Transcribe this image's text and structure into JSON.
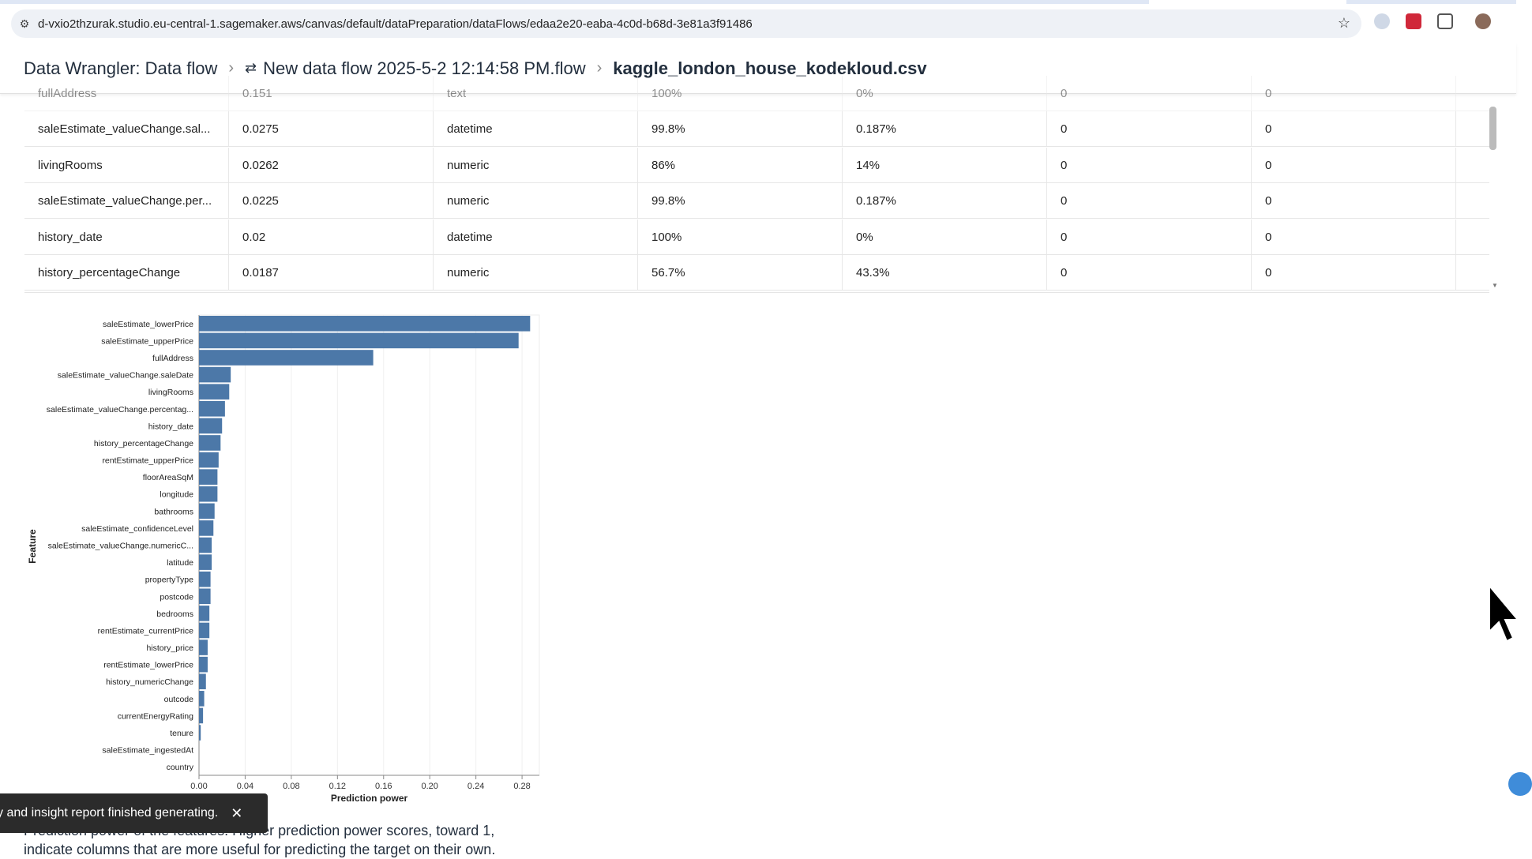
{
  "browser": {
    "url": "d-vxio2thzurak.studio.eu-central-1.sagemaker.aws/canvas/default/dataPreparation/dataFlows/edaa2e20-eaba-4c0d-b68d-3e81a3f91486"
  },
  "breadcrumb": [
    "Data Wrangler: Data flow",
    "New data flow 2025-5-2 12:14:58 PM.flow",
    "kaggle_london_house_kodekloud.csv"
  ],
  "table": {
    "partial_row": [
      "fullAddress",
      "0.151",
      "text",
      "100%",
      "0%",
      "0",
      "0"
    ],
    "rows": [
      [
        "saleEstimate_valueChange.sal...",
        "0.0275",
        "datetime",
        "99.8%",
        "0.187%",
        "0",
        "0"
      ],
      [
        "livingRooms",
        "0.0262",
        "numeric",
        "86%",
        "14%",
        "0",
        "0"
      ],
      [
        "saleEstimate_valueChange.per...",
        "0.0225",
        "numeric",
        "99.8%",
        "0.187%",
        "0",
        "0"
      ],
      [
        "history_date",
        "0.02",
        "datetime",
        "100%",
        "0%",
        "0",
        "0"
      ],
      [
        "history_percentageChange",
        "0.0187",
        "numeric",
        "56.7%",
        "43.3%",
        "0",
        "0"
      ]
    ]
  },
  "chart_data": {
    "type": "bar",
    "orientation": "horizontal",
    "xlabel": "Prediction power",
    "ylabel": "Feature",
    "xlim": [
      0,
      0.295
    ],
    "xticks": [
      "0.00",
      "0.04",
      "0.08",
      "0.12",
      "0.16",
      "0.20",
      "0.24",
      "0.28"
    ],
    "grid": true,
    "bar_color": "#4c78a8",
    "categories": [
      "saleEstimate_lowerPrice",
      "saleEstimate_upperPrice",
      "fullAddress",
      "saleEstimate_valueChange.saleDate",
      "livingRooms",
      "saleEstimate_valueChange.percentag...",
      "history_date",
      "history_percentageChange",
      "rentEstimate_upperPrice",
      "floorAreaSqM",
      "longitude",
      "bathrooms",
      "saleEstimate_confidenceLevel",
      "saleEstimate_valueChange.numericC...",
      "latitude",
      "propertyType",
      "postcode",
      "bedrooms",
      "rentEstimate_currentPrice",
      "history_price",
      "rentEstimate_lowerPrice",
      "history_numericChange",
      "outcode",
      "currentEnergyRating",
      "tenure",
      "saleEstimate_ingestedAt",
      "country"
    ],
    "values": [
      0.287,
      0.277,
      0.151,
      0.0275,
      0.0262,
      0.0225,
      0.02,
      0.0187,
      0.017,
      0.016,
      0.016,
      0.0135,
      0.0125,
      0.011,
      0.011,
      0.01,
      0.01,
      0.009,
      0.009,
      0.0075,
      0.0075,
      0.006,
      0.0045,
      0.0035,
      0.0015,
      0,
      0
    ]
  },
  "toast": {
    "message": "y and insight report finished generating."
  },
  "description": [
    "Prediction power of the features. Higher prediction power scores, toward 1,",
    "indicate columns that are more useful for predicting the target on their own."
  ]
}
